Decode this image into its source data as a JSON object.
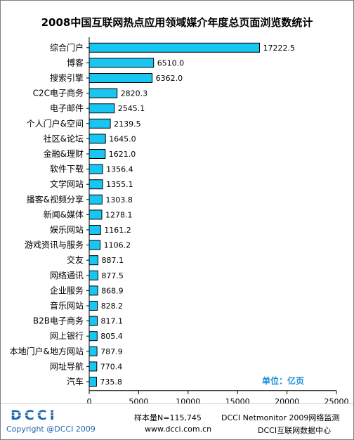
{
  "chart_data": {
    "type": "bar",
    "orientation": "horizontal",
    "title": "2008中国互联网热点应用领域媒介年度总页面浏览数统计",
    "categories": [
      "综合门户",
      "博客",
      "搜索引擎",
      "C2C电子商务",
      "电子邮件",
      "个人门户&空间",
      "社区&论坛",
      "金融&理财",
      "软件下载",
      "文学网站",
      "播客&视频分享",
      "新闻&媒体",
      "娱乐网站",
      "游戏资讯与服务",
      "交友",
      "网络通讯",
      "企业服务",
      "音乐网站",
      "B2B电子商务",
      "网上银行",
      "本地门户&地方网站",
      "网址导航",
      "汽车"
    ],
    "values": [
      17222.5,
      6510.0,
      6362.0,
      2820.3,
      2545.1,
      2139.5,
      1645.0,
      1621.0,
      1356.4,
      1355.1,
      1303.8,
      1278.1,
      1161.2,
      1106.2,
      887.1,
      877.5,
      868.9,
      828.2,
      817.1,
      805.4,
      787.9,
      770.4,
      735.8
    ],
    "value_labels": [
      "17222.5",
      "6510.0",
      "6362.0",
      "2820.3",
      "2545.1",
      "2139.5",
      "1645.0",
      "1621.0",
      "1356.4",
      "1355.1",
      "1303.8",
      "1278.1",
      "1161.2",
      "1106.2",
      "887.1",
      "877.5",
      "868.9",
      "828.2",
      "817.1",
      "805.4",
      "787.9",
      "770.4",
      "735.8"
    ],
    "xlim": [
      0,
      25000
    ],
    "xticks": [
      0,
      5000,
      10000,
      15000,
      20000,
      25000
    ],
    "xtick_labels": [
      "0",
      "5000",
      "10000",
      "15000",
      "20000",
      "25000"
    ],
    "grid": false,
    "bar_color": "#19c6f1",
    "unit_label": "单位：亿页"
  },
  "footer": {
    "logo_text": "DCCI",
    "copyright": "Copyright @DCCI 2009",
    "sample": "样本量N=115,745",
    "monitor": "DCCI Netmonitor 2009网络监测",
    "url": "www.dcci.com.cn",
    "center": "DCCI互联网数据中心"
  },
  "colors": {
    "logo": "#1a66b3",
    "unit": "#1f8fd8"
  }
}
